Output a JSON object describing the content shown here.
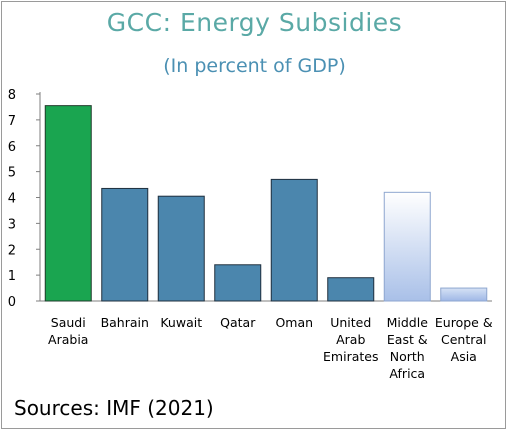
{
  "title": "GCC: Energy Subsidies",
  "subtitle": "(In percent of GDP)",
  "source": "Sources: IMF (2021)",
  "colors": {
    "title": "#5aa9a6",
    "subtitle": "#4b90b3",
    "highlight": "#1aa550",
    "gcc": "#4b86ad",
    "regional": "#c9d8f0"
  },
  "chart_data": {
    "type": "bar",
    "categories": [
      [
        "Saudi",
        "Arabia"
      ],
      [
        "Bahrain"
      ],
      [
        "Kuwait"
      ],
      [
        "Qatar"
      ],
      [
        "Oman"
      ],
      [
        "United",
        "Arab",
        "Emirates"
      ],
      [
        "Middle",
        "East &",
        "North",
        "Africa"
      ],
      [
        "Europe &",
        "Central",
        "Asia"
      ]
    ],
    "values": [
      7.55,
      4.35,
      4.05,
      1.4,
      4.7,
      0.9,
      4.2,
      0.5
    ],
    "bar_styles": [
      "highlight",
      "gcc",
      "gcc",
      "gcc",
      "gcc",
      "gcc",
      "regional",
      "regional"
    ],
    "ylim": [
      0,
      8
    ],
    "yticks": [
      0,
      1,
      2,
      3,
      4,
      5,
      6,
      7,
      8
    ],
    "grid": false,
    "xlabel": "",
    "ylabel": ""
  }
}
